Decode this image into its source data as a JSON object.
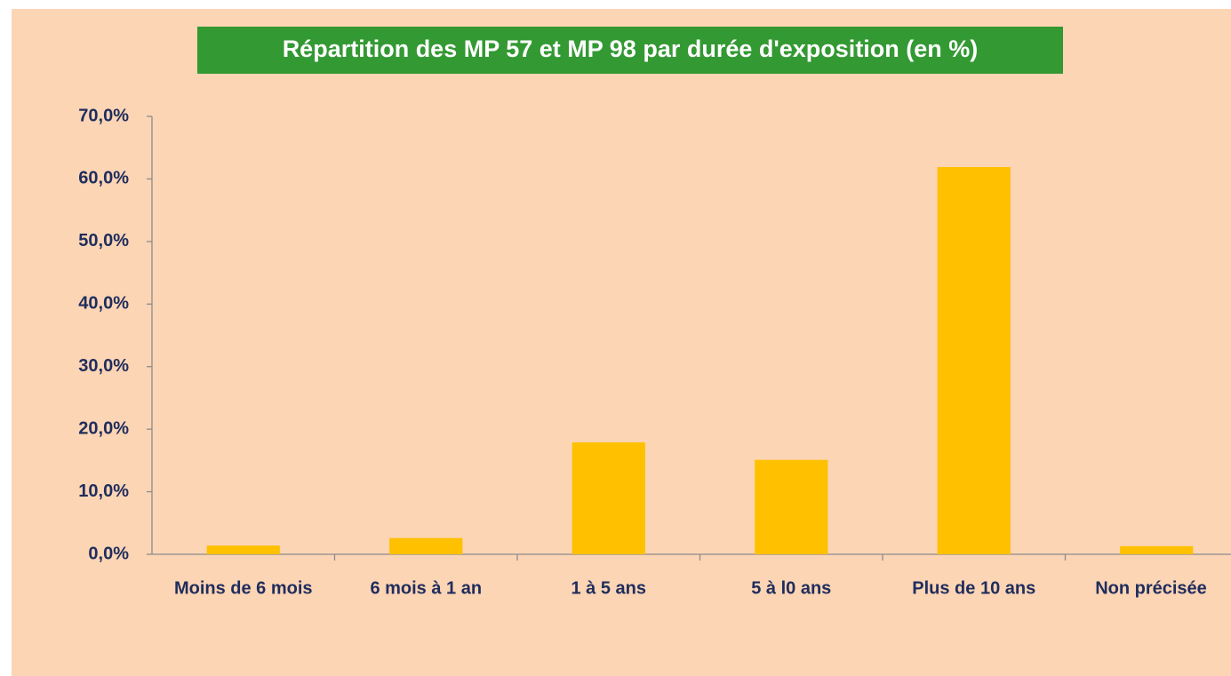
{
  "chart_data": {
    "type": "bar",
    "title": "Répartition des MP 57 et MP 98 par durée d'exposition (en %)",
    "categories": [
      "Moins de 6 mois",
      "6 mois à 1 an",
      "1 à 5 ans",
      "5 à l0 ans",
      "Plus de 10 ans",
      "Non précisée"
    ],
    "values": [
      1.4,
      2.6,
      17.9,
      15.1,
      61.9,
      1.3
    ],
    "color": "#ffc000",
    "ylim": [
      0,
      70
    ],
    "yticks": [
      {
        "value": 0,
        "label": "0,0%"
      },
      {
        "value": 10,
        "label": "10,0%"
      },
      {
        "value": 20,
        "label": "20,0%"
      },
      {
        "value": 30,
        "label": "30,0%"
      },
      {
        "value": 40,
        "label": "40,0%"
      },
      {
        "value": 50,
        "label": "50,0%"
      },
      {
        "value": 60,
        "label": "60,0%"
      },
      {
        "value": 70,
        "label": "70,0%"
      }
    ],
    "grid": false
  }
}
